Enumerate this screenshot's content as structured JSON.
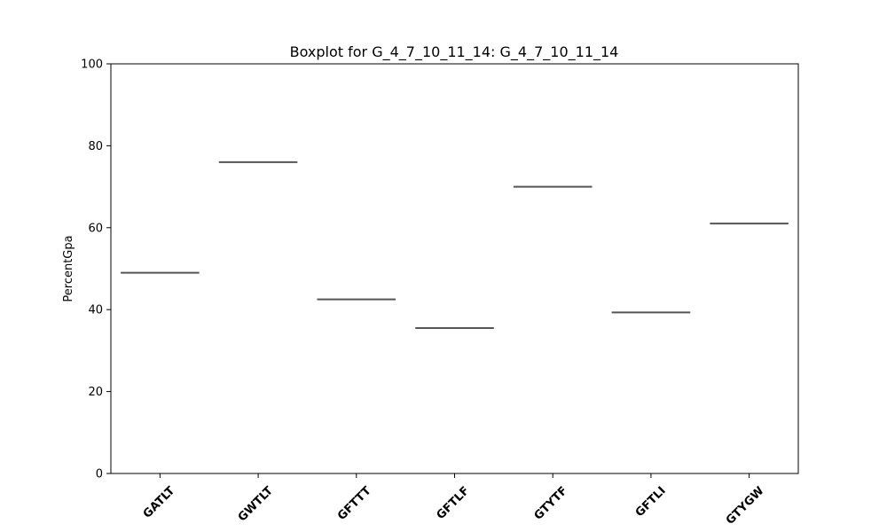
{
  "chart_data": {
    "type": "box",
    "title": "Boxplot for G_4_7_10_11_14: G_4_7_10_11_14",
    "xlabel": "",
    "ylabel": "PercentGpa",
    "ylim": [
      0,
      100
    ],
    "yticks": [
      "0",
      "20",
      "40",
      "60",
      "80",
      "100"
    ],
    "categories": [
      "GATLT",
      "GWTLT",
      "GFTTT",
      "GFTLF",
      "GTYTF",
      "GFTLI",
      "GTYGW"
    ],
    "values": [
      49.0,
      76.0,
      42.5,
      35.5,
      70.0,
      39.3,
      61.0
    ],
    "grid": false,
    "line_color": "#555555"
  }
}
